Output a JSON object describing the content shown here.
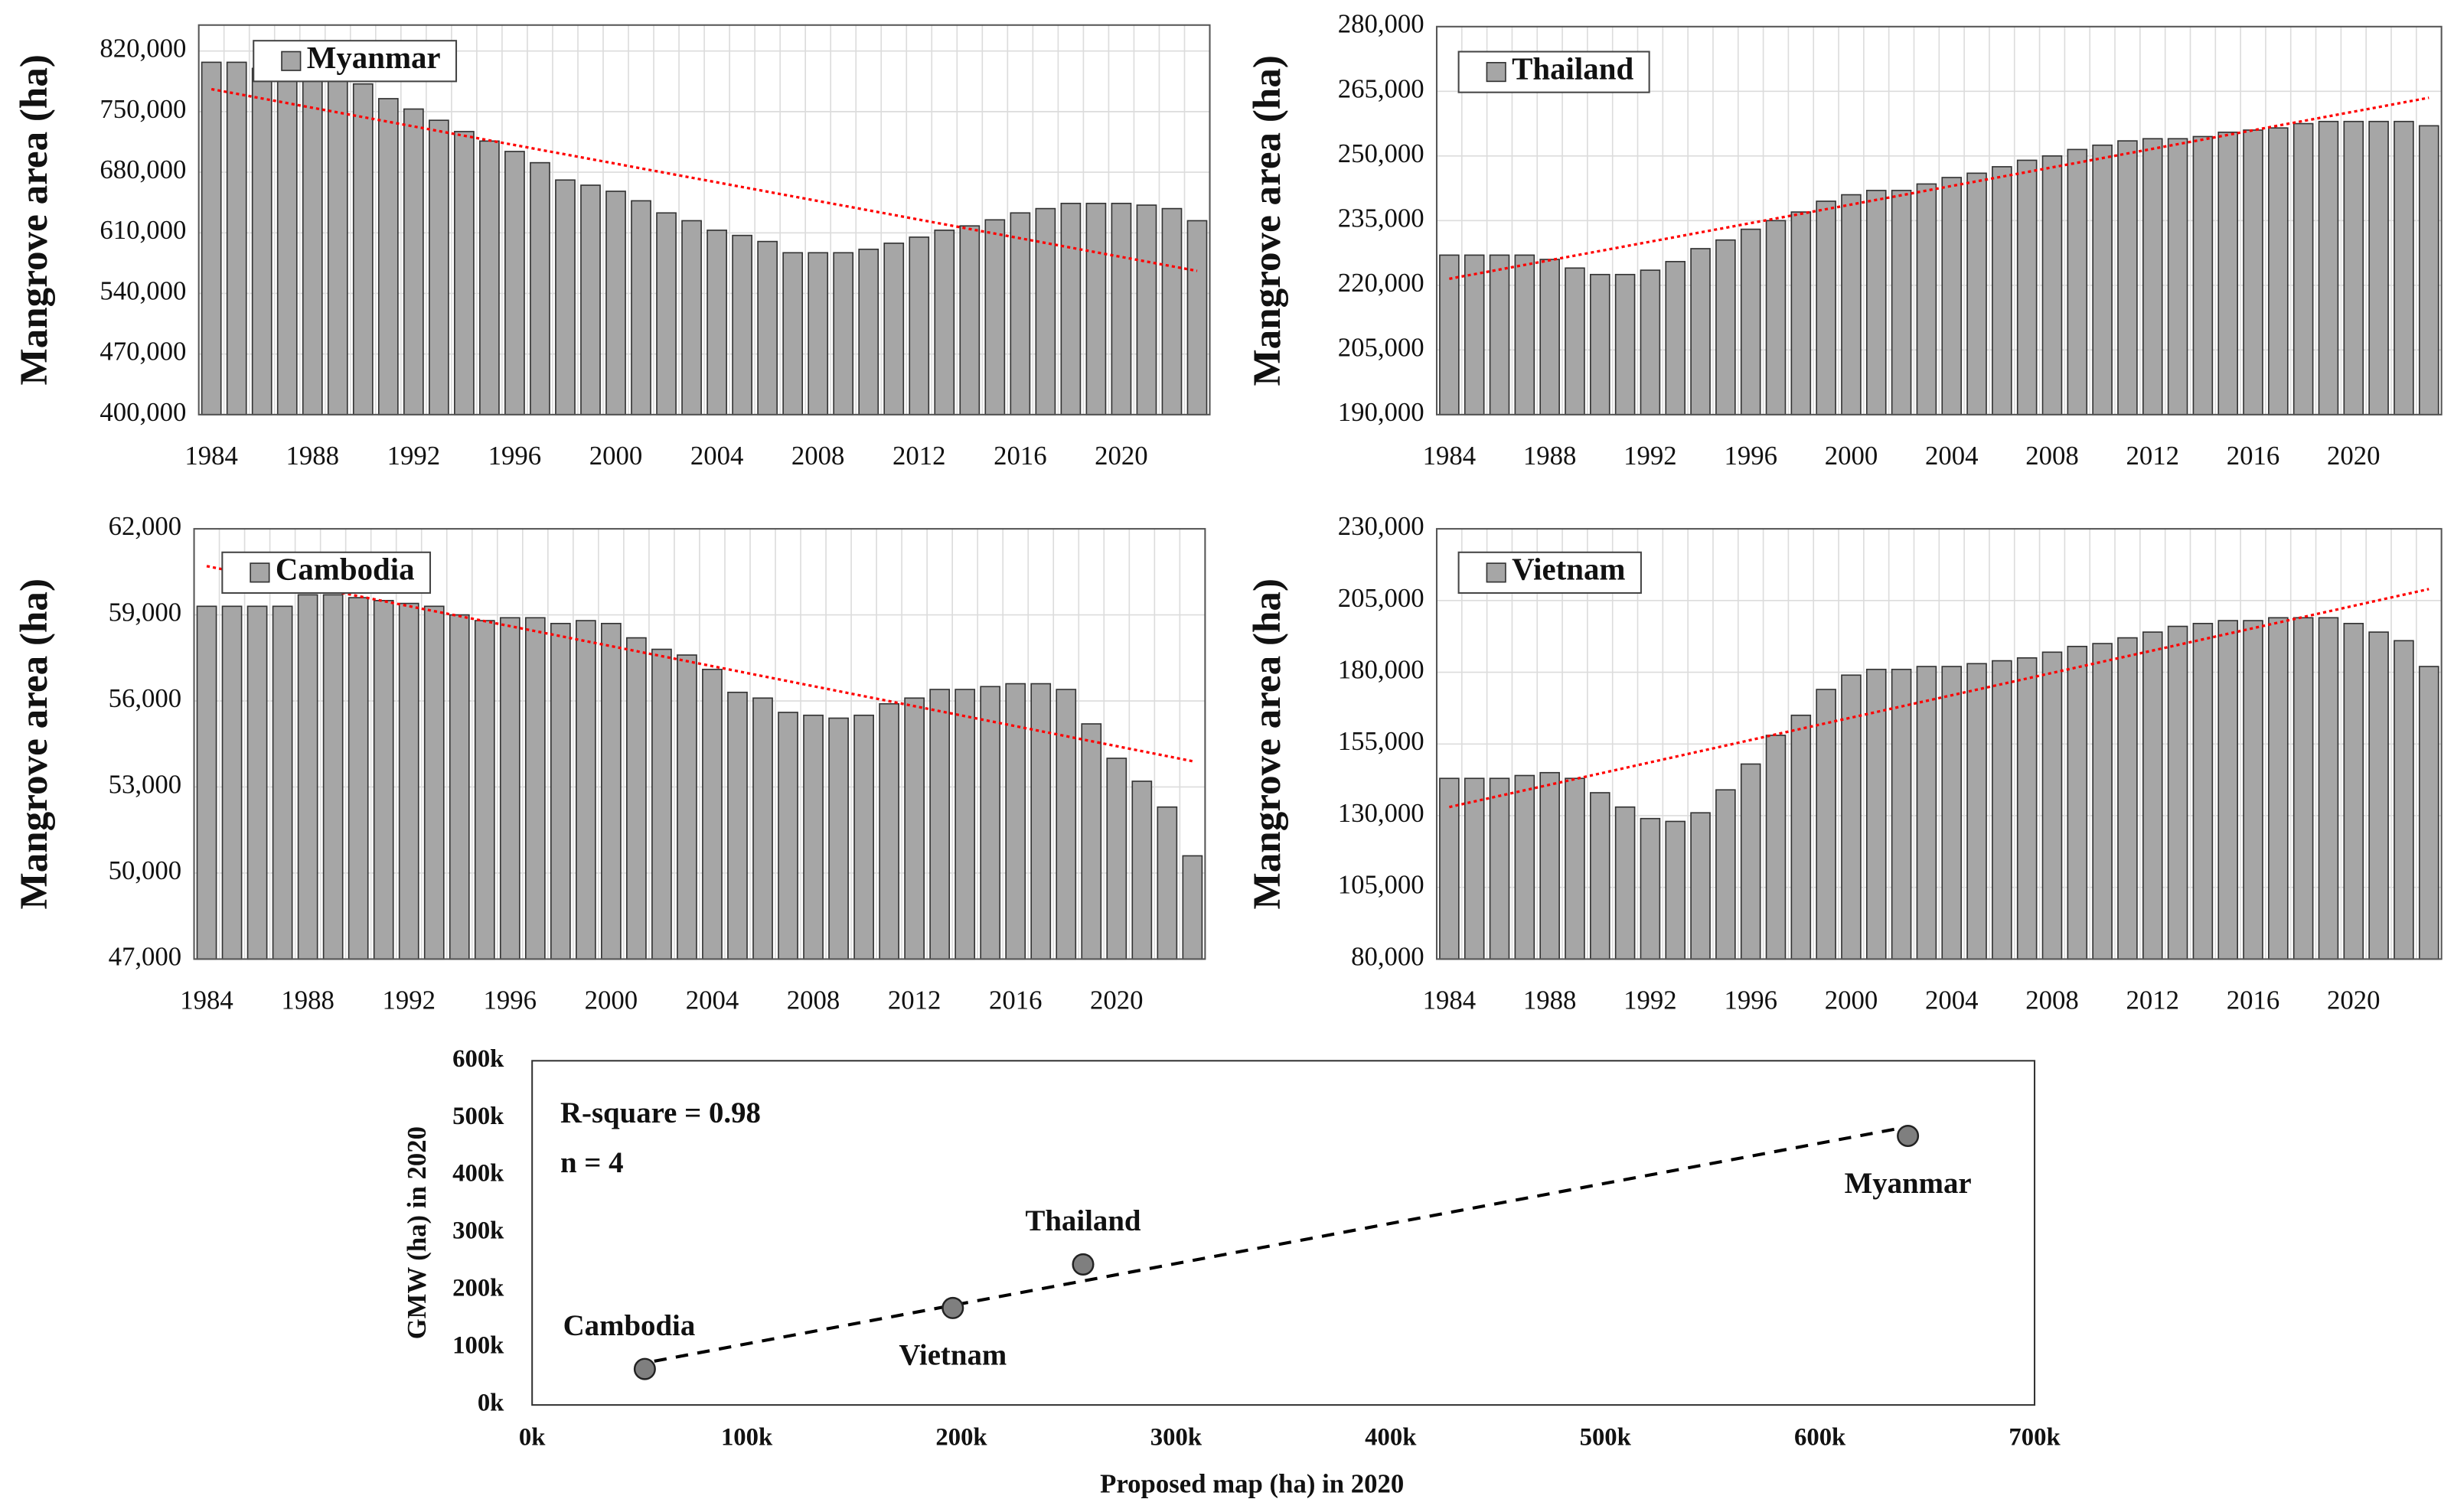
{
  "chart_data": [
    {
      "type": "bar",
      "y_label": "Mangrove area (ha)",
      "categories": [
        "1984",
        null,
        null,
        null,
        "1988",
        null,
        null,
        null,
        "1992",
        null,
        null,
        null,
        "1996",
        null,
        null,
        null,
        "2000",
        null,
        null,
        null,
        "2004",
        null,
        null,
        null,
        "2008",
        null,
        null,
        null,
        "2012",
        null,
        null,
        null,
        "2016",
        null,
        null,
        null,
        "2020",
        null,
        null,
        null
      ],
      "series": [
        {
          "name": "Myanmar",
          "color": "#a6a6a6",
          "values": [
            807000,
            807000,
            800000,
            800000,
            795000,
            790000,
            782000,
            765000,
            753000,
            740000,
            727000,
            716000,
            704000,
            691000,
            671000,
            665000,
            658000,
            647000,
            633000,
            624000,
            613000,
            607000,
            600000,
            587000,
            587000,
            587000,
            591000,
            598000,
            605000,
            613000,
            618000,
            625000,
            633000,
            638000,
            644000,
            644000,
            644000,
            642000,
            638000,
            624000
          ]
        }
      ],
      "trendline": {
        "values": [
          776000,
          566000
        ],
        "color": "#ff0000"
      },
      "ylim": [
        400000,
        850000
      ],
      "yticks": [
        {
          "value": 400000,
          "label": "400,000"
        },
        {
          "value": 470000,
          "label": "470,000"
        },
        {
          "value": 540000,
          "label": "540,000"
        },
        {
          "value": 610000,
          "label": "610,000"
        },
        {
          "value": 680000,
          "label": "680,000"
        },
        {
          "value": 750000,
          "label": "750,000"
        },
        {
          "value": 820000,
          "label": "820,000"
        }
      ],
      "grid": true
    },
    {
      "type": "bar",
      "y_label": "Mangrove area (ha)",
      "categories": [
        "1984",
        null,
        null,
        null,
        "1988",
        null,
        null,
        null,
        "1992",
        null,
        null,
        null,
        "1996",
        null,
        null,
        null,
        "2000",
        null,
        null,
        null,
        "2004",
        null,
        null,
        null,
        "2008",
        null,
        null,
        null,
        "2012",
        null,
        null,
        null,
        "2016",
        null,
        null,
        null,
        "2020",
        null,
        null,
        null
      ],
      "series": [
        {
          "name": "Thailand",
          "color": "#a6a6a6",
          "values": [
            227000,
            227000,
            227000,
            227000,
            226000,
            224000,
            222500,
            222500,
            223500,
            225500,
            228500,
            230500,
            233000,
            235000,
            237000,
            239500,
            241000,
            242000,
            242000,
            243500,
            245000,
            246000,
            247500,
            249000,
            250000,
            251500,
            252500,
            253500,
            254000,
            254000,
            254500,
            255500,
            256000,
            256500,
            257500,
            258000,
            258000,
            258000,
            258000,
            257000
          ]
        }
      ],
      "trendline": {
        "values": [
          221500,
          263500
        ],
        "color": "#ff0000"
      },
      "ylim": [
        190000,
        280000
      ],
      "yticks": [
        {
          "value": 190000,
          "label": "190,000"
        },
        {
          "value": 205000,
          "label": "205,000"
        },
        {
          "value": 220000,
          "label": "220,000"
        },
        {
          "value": 235000,
          "label": "235,000"
        },
        {
          "value": 250000,
          "label": "250,000"
        },
        {
          "value": 265000,
          "label": "265,000"
        },
        {
          "value": 280000,
          "label": "280,000"
        }
      ],
      "grid": true
    },
    {
      "type": "bar",
      "y_label": "Mangrove area (ha)",
      "categories": [
        "1984",
        null,
        null,
        null,
        "1988",
        null,
        null,
        null,
        "1992",
        null,
        null,
        null,
        "1996",
        null,
        null,
        null,
        "2000",
        null,
        null,
        null,
        "2004",
        null,
        null,
        null,
        "2008",
        null,
        null,
        null,
        "2012",
        null,
        null,
        null,
        "2016",
        null,
        null,
        null,
        "2020",
        null,
        null,
        null
      ],
      "series": [
        {
          "name": "Cambodia",
          "color": "#a6a6a6",
          "values": [
            59300,
            59300,
            59300,
            59300,
            59700,
            59700,
            59600,
            59500,
            59400,
            59300,
            59000,
            58800,
            58900,
            58900,
            58700,
            58800,
            58700,
            58200,
            57800,
            57600,
            57100,
            56300,
            56100,
            55600,
            55500,
            55400,
            55500,
            55900,
            56100,
            56400,
            56400,
            56500,
            56600,
            56600,
            56400,
            55200,
            54000,
            53200,
            52300,
            50600
          ]
        }
      ],
      "trendline": {
        "values": [
          60700,
          53900
        ],
        "color": "#ff0000"
      },
      "ylim": [
        47000,
        62000
      ],
      "yticks": [
        {
          "value": 47000,
          "label": "47,000"
        },
        {
          "value": 50000,
          "label": "50,000"
        },
        {
          "value": 53000,
          "label": "53,000"
        },
        {
          "value": 56000,
          "label": "56,000"
        },
        {
          "value": 59000,
          "label": "59,000"
        },
        {
          "value": 62000,
          "label": "62,000"
        }
      ],
      "grid": true
    },
    {
      "type": "bar",
      "y_label": "Mangrove area (ha)",
      "categories": [
        "1984",
        null,
        null,
        null,
        "1988",
        null,
        null,
        null,
        "1992",
        null,
        null,
        null,
        "1996",
        null,
        null,
        null,
        "2000",
        null,
        null,
        null,
        "2004",
        null,
        null,
        null,
        "2008",
        null,
        null,
        null,
        "2012",
        null,
        null,
        null,
        "2016",
        null,
        null,
        null,
        "2020",
        null,
        null,
        null
      ],
      "series": [
        {
          "name": "Vietnam",
          "color": "#a6a6a6",
          "values": [
            143000,
            143000,
            143000,
            144000,
            145000,
            143000,
            138000,
            133000,
            129000,
            128000,
            131000,
            139000,
            148000,
            158000,
            165000,
            174000,
            179000,
            181000,
            181000,
            182000,
            182000,
            183000,
            184000,
            185000,
            187000,
            189000,
            190000,
            192000,
            194000,
            196000,
            197000,
            198000,
            198000,
            199000,
            199000,
            199000,
            197000,
            194000,
            191000,
            182000
          ]
        }
      ],
      "trendline": {
        "values": [
          133000,
          209000
        ],
        "color": "#ff0000"
      },
      "ylim": [
        80000,
        230000
      ],
      "yticks": [
        {
          "value": 80000,
          "label": "80,000"
        },
        {
          "value": 105000,
          "label": "105,000"
        },
        {
          "value": 130000,
          "label": "130,000"
        },
        {
          "value": 155000,
          "label": "155,000"
        },
        {
          "value": 180000,
          "label": "180,000"
        },
        {
          "value": 205000,
          "label": "205,000"
        },
        {
          "value": 230000,
          "label": "230,000"
        }
      ],
      "grid": true
    },
    {
      "type": "scatter",
      "x_label": "Proposed map (ha) in 2020",
      "y_label": "GMW (ha) in 2020",
      "annotations": [
        "R-square = 0.98",
        "n = 4"
      ],
      "points": [
        {
          "label": "Cambodia",
          "x": 52500,
          "y": 62700,
          "label_position": "above"
        },
        {
          "label": "Vietnam",
          "x": 196000,
          "y": 169000,
          "label_position": "below"
        },
        {
          "label": "Thailand",
          "x": 256700,
          "y": 245000,
          "label_position": "above"
        },
        {
          "label": "Myanmar",
          "x": 641000,
          "y": 469000,
          "label_position": "below"
        }
      ],
      "color": "#7f7f7f",
      "trendline": {
        "x": [
          56900,
          641000
        ],
        "y": [
          76400,
          485000
        ],
        "color": "#000000"
      },
      "xlim": [
        0,
        700000
      ],
      "xticks": [
        {
          "value": 0,
          "label": "0k"
        },
        {
          "value": 100000,
          "label": "100k"
        },
        {
          "value": 200000,
          "label": "200k"
        },
        {
          "value": 300000,
          "label": "300k"
        },
        {
          "value": 400000,
          "label": "400k"
        },
        {
          "value": 500000,
          "label": "500k"
        },
        {
          "value": 600000,
          "label": "600k"
        },
        {
          "value": 700000,
          "label": "700k"
        }
      ],
      "ylim": [
        0,
        600000
      ],
      "yticks": [
        {
          "value": 0,
          "label": "0k"
        },
        {
          "value": 100000,
          "label": "100k"
        },
        {
          "value": 200000,
          "label": "200k"
        },
        {
          "value": 300000,
          "label": "300k"
        },
        {
          "value": 400000,
          "label": "400k"
        },
        {
          "value": 500000,
          "label": "500k"
        },
        {
          "value": 600000,
          "label": "600k"
        }
      ]
    }
  ]
}
